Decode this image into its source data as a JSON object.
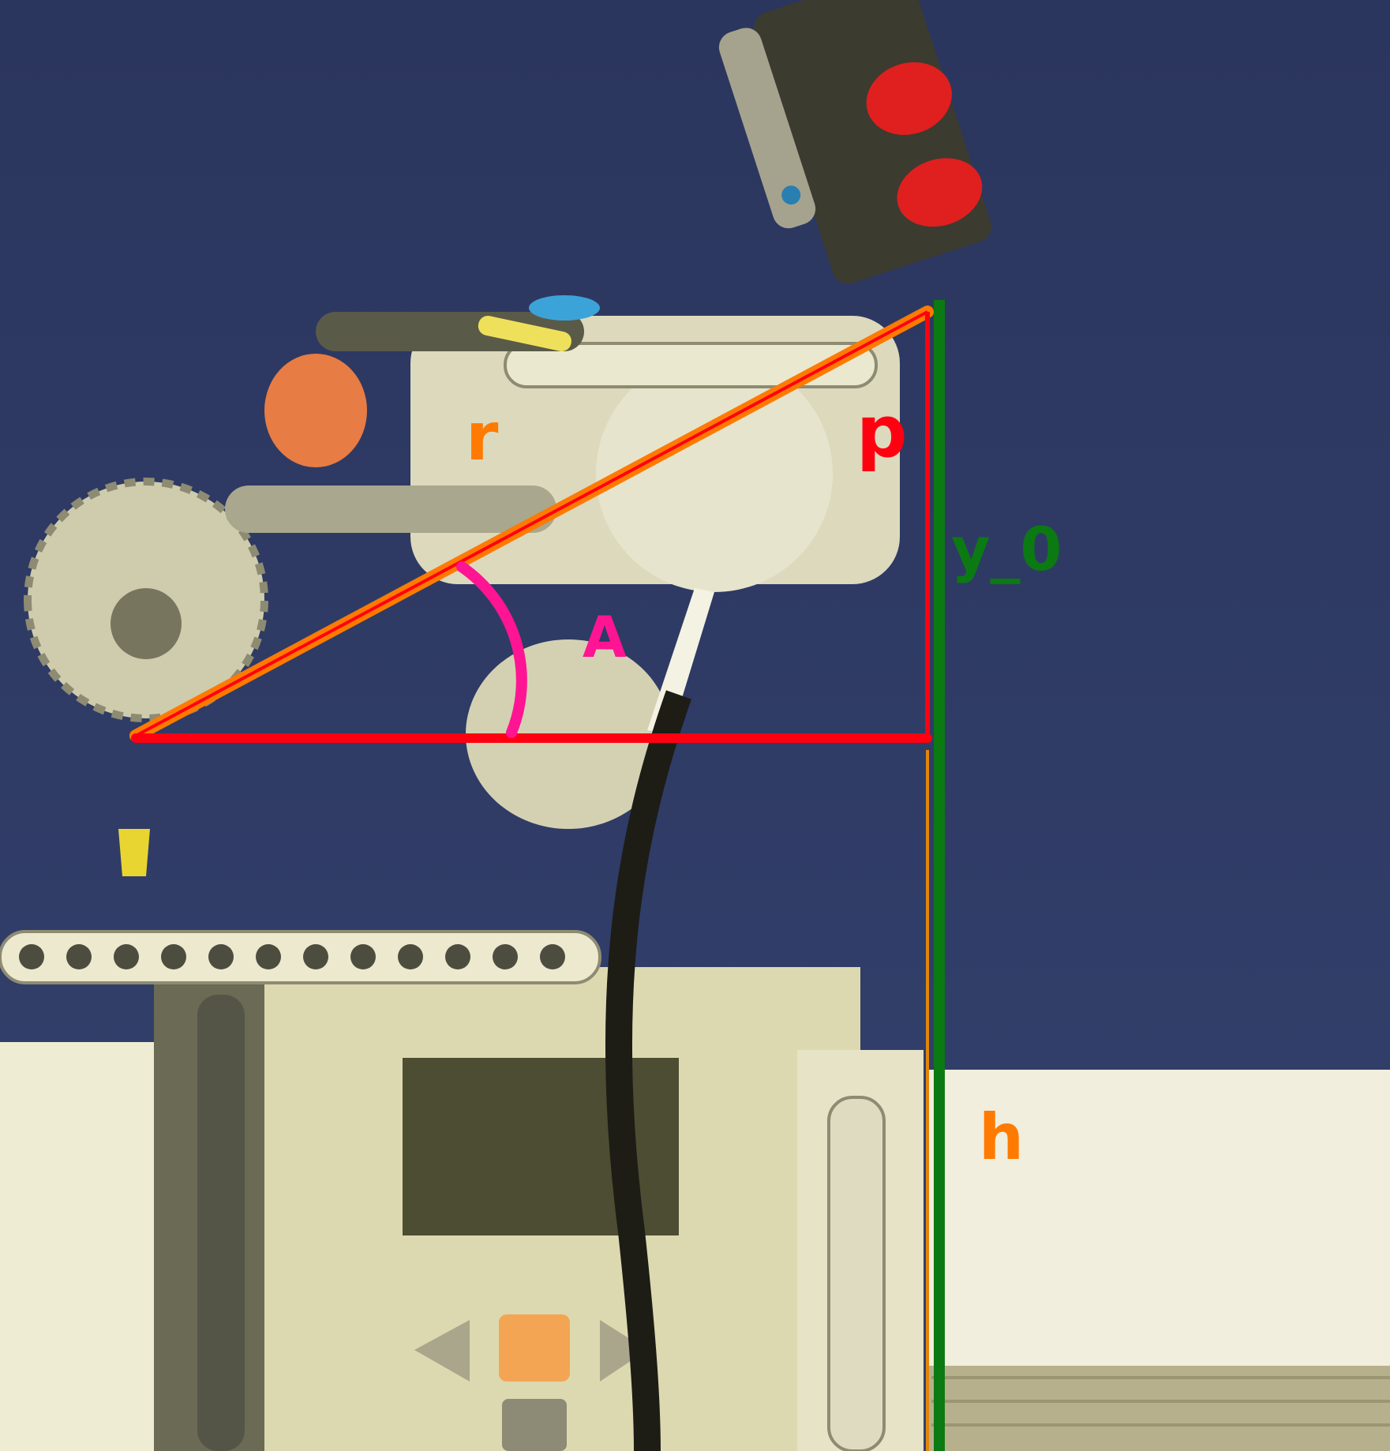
{
  "labels": {
    "r": "r",
    "p": "p",
    "A": "A",
    "y0": "y_0",
    "h": "h"
  },
  "colors": {
    "sky": "#2f3a63",
    "radius_line": "#ff7a00",
    "triangle_line": "#ff0010",
    "angle_arc": "#ff1493",
    "height_line": "#0b7a12",
    "h_line": "#e0860a",
    "label_orange": "#ff7a00",
    "label_red": "#ff0010",
    "label_pink": "#ff1493",
    "label_green": "#0b7a12"
  }
}
